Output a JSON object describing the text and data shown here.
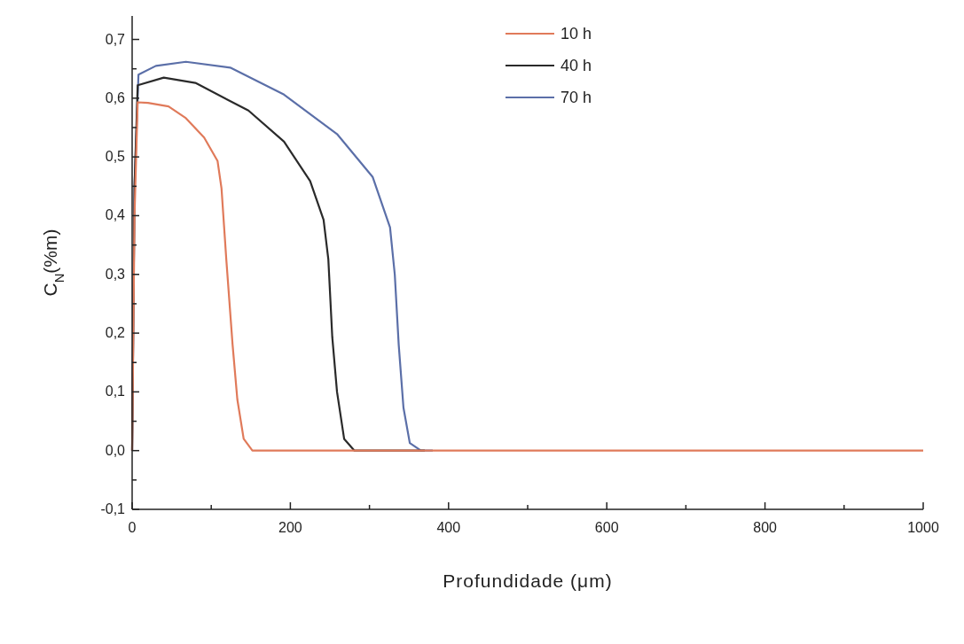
{
  "chart_data": {
    "type": "line",
    "xlabel": "Profundidade (μm)",
    "ylabel": "C$_{N}$(%m)",
    "xlim": [
      0,
      1000
    ],
    "ylim": [
      -0.1,
      0.74
    ],
    "xticks": [
      0,
      {
        "value": 100,
        "label": null
      },
      200,
      {
        "value": 300,
        "label": null
      },
      400,
      {
        "value": 500,
        "label": null
      },
      600,
      {
        "value": 700,
        "label": null
      },
      800,
      {
        "value": 900,
        "label": null
      },
      1000
    ],
    "yticks": [
      {
        "value": -0.1,
        "label": "-0,1"
      },
      {
        "value": -0.05,
        "label": null
      },
      {
        "value": 0,
        "label": "0,0"
      },
      {
        "value": 0.05,
        "label": null
      },
      {
        "value": 0.1,
        "label": "0,1"
      },
      {
        "value": 0.15,
        "label": null
      },
      {
        "value": 0.2,
        "label": "0,2"
      },
      {
        "value": 0.25,
        "label": null
      },
      {
        "value": 0.3,
        "label": "0,3"
      },
      {
        "value": 0.35,
        "label": null
      },
      {
        "value": 0.4,
        "label": "0,4"
      },
      {
        "value": 0.45,
        "label": null
      },
      {
        "value": 0.5,
        "label": "0,5"
      },
      {
        "value": 0.55,
        "label": null
      },
      {
        "value": 0.6,
        "label": "0,6"
      },
      {
        "value": 0.65,
        "label": null
      },
      {
        "value": 0.7,
        "label": "0,7"
      }
    ],
    "grid": false,
    "legend": "top",
    "marker": "none",
    "line_style": "solid",
    "series": [
      {
        "name": "10 h",
        "color": "#e07a5a",
        "x": [
          0,
          3,
          7,
          20,
          46,
          68,
          91,
          108,
          113,
          119,
          127,
          133,
          141,
          152,
          200,
          400,
          600,
          800,
          1000
        ],
        "values": [
          0,
          0.4,
          0.593,
          0.592,
          0.586,
          0.566,
          0.533,
          0.493,
          0.446,
          0.326,
          0.18,
          0.087,
          0.02,
          0,
          0,
          0,
          0,
          0,
          0
        ]
      },
      {
        "name": "40 h",
        "color": "#2a2a2a",
        "x": [
          0,
          3,
          7,
          40,
          80,
          147,
          192,
          225,
          242,
          248,
          253,
          259,
          268,
          281,
          330,
          370
        ],
        "values": [
          0,
          0.45,
          0.622,
          0.635,
          0.626,
          0.579,
          0.526,
          0.459,
          0.393,
          0.326,
          0.193,
          0.1,
          0.02,
          0,
          0,
          0
        ],
        "line_style": "solid"
      },
      {
        "name": "70 h",
        "color": "#5b6fa8",
        "x": [
          0,
          3,
          8,
          30,
          68,
          124,
          192,
          259,
          304,
          326,
          332,
          337,
          343,
          351,
          365,
          372,
          380
        ],
        "values": [
          0,
          0.45,
          0.64,
          0.655,
          0.662,
          0.652,
          0.606,
          0.539,
          0.466,
          0.38,
          0.3,
          0.18,
          0.073,
          0.013,
          0,
          0,
          0
        ]
      }
    ]
  }
}
